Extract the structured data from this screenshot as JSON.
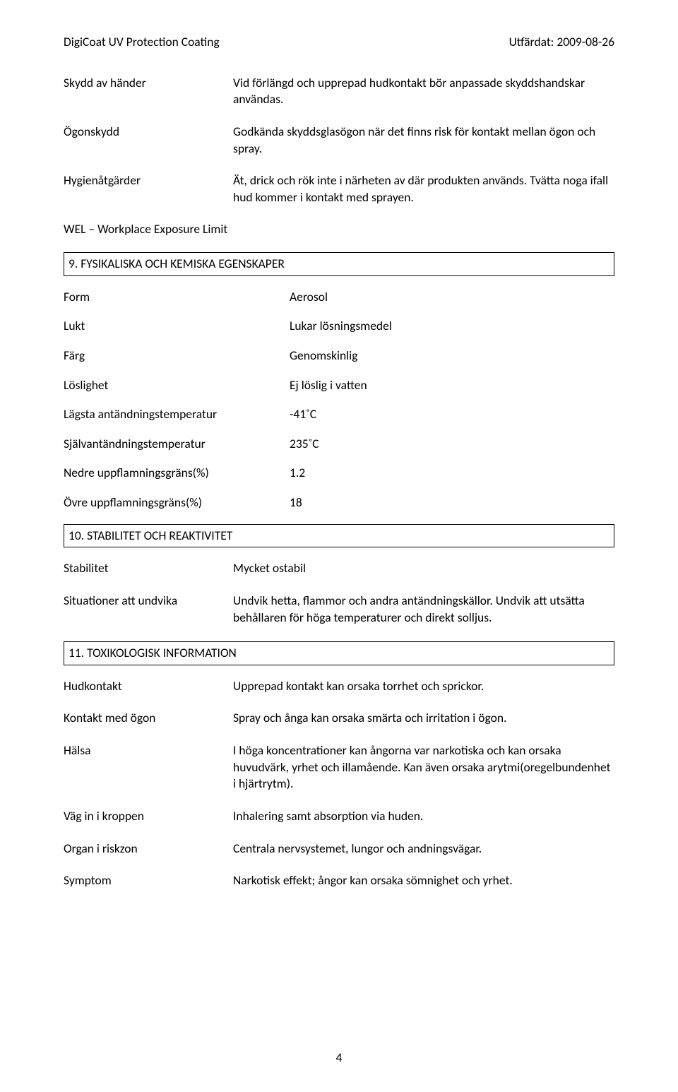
{
  "header": {
    "product": "DigiCoat UV Protection Coating",
    "issued_label": "Utfärdat: 2009-08-26"
  },
  "protect": {
    "hands_label": "Skydd av händer",
    "hands_text": "Vid förlängd och upprepad hudkontakt bör anpassade skyddshandskar användas.",
    "eyes_label": "Ögonskydd",
    "eyes_text": "Godkända skyddsglasögon när det finns risk för kontakt mellan ögon och spray.",
    "hygiene_label": "Hygienåtgärder",
    "hygiene_text": "Ät, drick och rök inte i närheten av där produkten används. Tvätta noga ifall hud kommer i kontakt med sprayen.",
    "wel": "WEL – Workplace Exposure Limit"
  },
  "sec9": {
    "title": "9. FYSIKALISKA OCH KEMISKA EGENSKAPER",
    "form_label": "Form",
    "form_value": "Aerosol",
    "odor_label": "Lukt",
    "odor_value": "Lukar lösningsmedel",
    "color_label": "Färg",
    "color_value": "Genomskinlig",
    "sol_label": "Löslighet",
    "sol_value": "Ej löslig i vatten",
    "low_ign_label": "Lägsta antändningstemperatur",
    "low_ign_value": "-41˚C",
    "auto_ign_label": "Självantändningstemperatur",
    "auto_ign_value": "235˚C",
    "lfl_label": "Nedre uppflamningsgräns(%)",
    "lfl_value": "1.2",
    "ufl_label": "Övre uppflamningsgräns(%)",
    "ufl_value": "18"
  },
  "sec10": {
    "title": "10. STABILITET OCH REAKTIVITET",
    "stability_label": "Stabilitet",
    "stability_value": "Mycket ostabil",
    "avoid_label": "Situationer att undvika",
    "avoid_value": "Undvik hetta, flammor och andra antändningskällor. Undvik att utsätta behållaren för höga temperaturer och direkt solljus."
  },
  "sec11": {
    "title": "11. TOXIKOLOGISK INFORMATION",
    "skin_label": "Hudkontakt",
    "skin_value": "Upprepad kontakt kan orsaka torrhet och sprickor.",
    "eyes_label": "Kontakt med ögon",
    "eyes_value": "Spray och ånga kan orsaka smärta och irritation i ögon.",
    "health_label": "Hälsa",
    "health_value": "I höga koncentrationer kan ångorna var narkotiska och kan orsaka huvudvärk, yrhet och illamående. Kan även orsaka arytmi(oregelbundenhet i hjärtrytm).",
    "route_label": "Väg in i kroppen",
    "route_value": "Inhalering samt absorption via huden.",
    "organs_label": "Organ i riskzon",
    "organs_value": "Centrala nervsystemet, lungor och andningsvägar.",
    "sym_label": "Symptom",
    "sym_value": "Narkotisk effekt; ångor kan orsaka sömnighet och yrhet."
  },
  "page_number": "4"
}
